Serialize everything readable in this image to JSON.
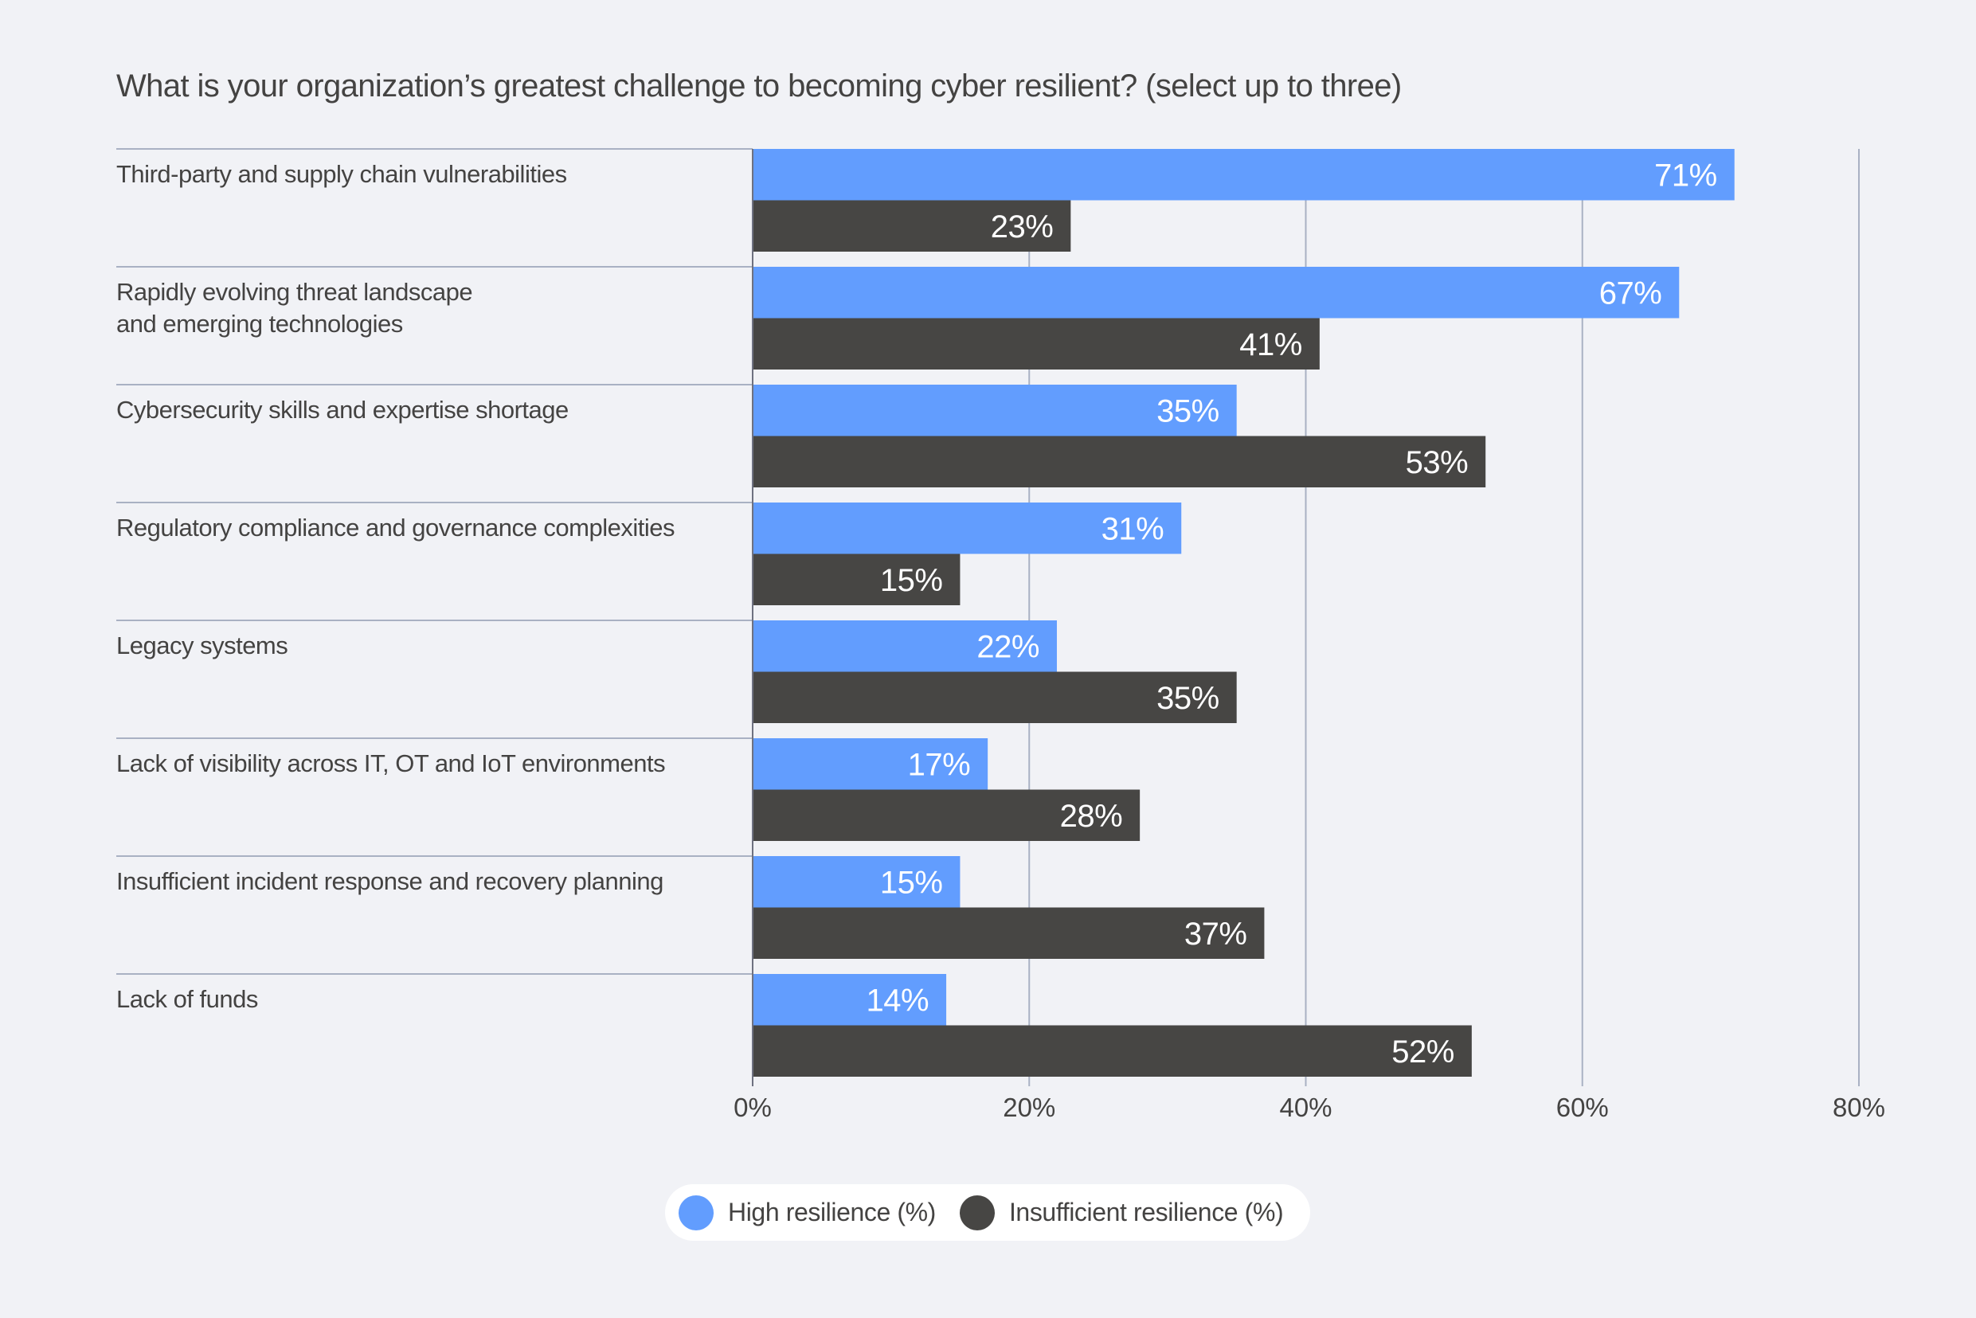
{
  "chart_data": {
    "type": "bar",
    "orientation": "horizontal",
    "title": "What is your organization’s greatest challenge to becoming cyber resilient? (select up to three)",
    "categories": [
      [
        "Third-party and supply chain vulnerabilities"
      ],
      [
        "Rapidly evolving threat landscape",
        "and emerging technologies"
      ],
      [
        "Cybersecurity skills and expertise shortage"
      ],
      [
        "Regulatory compliance and governance complexities"
      ],
      [
        "Legacy systems"
      ],
      [
        "Lack of visibility across IT, OT and IoT environments"
      ],
      [
        "Insufficient incident response and recovery planning"
      ],
      [
        "Lack of funds"
      ]
    ],
    "series": [
      {
        "name": "High resilience (%)",
        "color": "#629DFE",
        "values": [
          71,
          67,
          35,
          31,
          22,
          17,
          15,
          14
        ]
      },
      {
        "name": "Insufficient resilience (%)",
        "color": "#474644",
        "values": [
          23,
          41,
          53,
          15,
          35,
          28,
          37,
          52
        ]
      }
    ],
    "value_suffix": "%",
    "xlim": [
      0,
      80
    ],
    "xticks": [
      0,
      20,
      40,
      60,
      80
    ],
    "xtick_labels": [
      "0%",
      "20%",
      "40%",
      "60%",
      "80%"
    ],
    "xlabel": "",
    "ylabel": "",
    "grid": true,
    "legend_position": "bottom-center"
  },
  "colors": {
    "background": "#F1F2F6",
    "gridline": "#A9B1C3",
    "text": "#444342"
  }
}
